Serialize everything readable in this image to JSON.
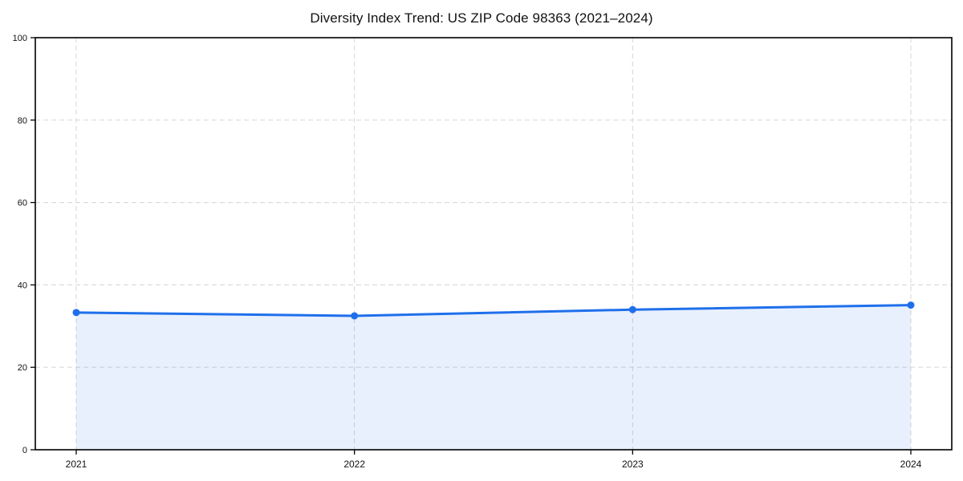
{
  "page": {
    "background": "#ffffff"
  },
  "chart_data": {
    "type": "line",
    "title": "Diversity Index Trend: US ZIP Code 98363 (2021–2024)",
    "x": [
      2021,
      2022,
      2023,
      2024
    ],
    "x_tick_labels": [
      "2021",
      "2022",
      "2023",
      "2024"
    ],
    "series": [
      {
        "name": "Diversity Index",
        "values": [
          33.3,
          32.5,
          34.0,
          35.1
        ]
      }
    ],
    "ylim": [
      0,
      100
    ],
    "y_ticks": [
      0,
      20,
      40,
      60,
      80,
      100
    ],
    "y_tick_labels": [
      "0",
      "20",
      "40",
      "60",
      "80",
      "100"
    ],
    "xlabel": "",
    "ylabel": "",
    "grid": "dashed, both axes",
    "legend_position": "none",
    "line_color": "#1f6feb",
    "marker": "circle",
    "fill_under_line": true,
    "fill_color": "#1f6feb",
    "fill_opacity": 0.1,
    "gridline_color": "#dcdcdc",
    "axis_color": "#000000"
  }
}
